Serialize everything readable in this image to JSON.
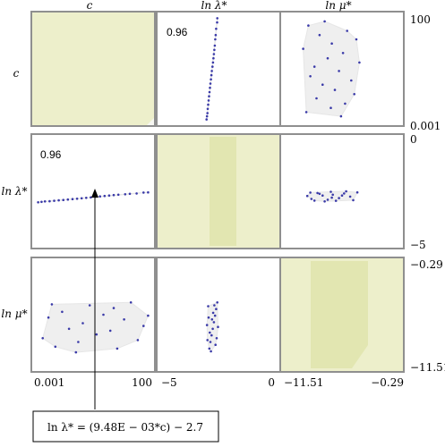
{
  "figure": {
    "column_headers": [
      "c",
      "ln λ*",
      "ln μ*"
    ],
    "row_headers": [
      "c",
      "ln λ*",
      "ln μ*"
    ],
    "correlation_labels": {
      "r0c1": "0.96",
      "r1c0": "0.96"
    },
    "annotation": "ln λ* = (9.48E − 03*c) − 2.7",
    "colors": {
      "diagonal_fill": "#edefcb",
      "diagonal_band": "#e2e6b1",
      "hull_fill": "#efefef",
      "point": "#3a3aa8",
      "frame": "#8f8f8f"
    }
  },
  "chart_data": {
    "type": "scatter",
    "variables": [
      {
        "name": "c",
        "range": [
          0.001,
          100
        ],
        "tick_labels": [
          "0.001",
          "100"
        ]
      },
      {
        "name": "ln λ*",
        "range": [
          -5,
          0
        ],
        "tick_labels": [
          "-5",
          "0"
        ]
      },
      {
        "name": "ln μ*",
        "range": [
          -11.51,
          -0.29
        ],
        "tick_labels": [
          "-11.51",
          "-0.29"
        ]
      }
    ],
    "right_axis_labels": [
      {
        "top": "100",
        "bottom": "0.001"
      },
      {
        "top": "0",
        "bottom": "−5"
      },
      {
        "top": "−0.29",
        "bottom": "−11.51"
      }
    ],
    "bottom_axis_labels": [
      {
        "left": "0.001",
        "right": "100"
      },
      {
        "left": "−5",
        "right": "0"
      },
      {
        "left": "−11.51",
        "right": "−0.29"
      }
    ],
    "panels": [
      {
        "row": 0,
        "col": 0,
        "kind": "diagonal"
      },
      {
        "row": 0,
        "col": 1,
        "kind": "scatter",
        "x": "ln λ*",
        "y": "c",
        "label": "0.96",
        "points": [
          [
            -2.55,
            98
          ],
          [
            -2.56,
            94
          ],
          [
            -2.6,
            88
          ],
          [
            -2.62,
            82
          ],
          [
            -2.64,
            78
          ],
          [
            -2.66,
            72
          ],
          [
            -2.68,
            68
          ],
          [
            -2.7,
            64
          ],
          [
            -2.72,
            60
          ],
          [
            -2.74,
            56
          ],
          [
            -2.76,
            52
          ],
          [
            -2.79,
            48
          ],
          [
            -2.81,
            44
          ],
          [
            -2.83,
            40
          ],
          [
            -2.85,
            36
          ],
          [
            -2.87,
            32
          ],
          [
            -2.89,
            28
          ],
          [
            -2.91,
            24
          ],
          [
            -2.93,
            20
          ],
          [
            -2.95,
            16
          ],
          [
            -2.97,
            12
          ],
          [
            -2.98,
            8
          ],
          [
            -3.0,
            5
          ],
          [
            -3.02,
            2
          ]
        ]
      },
      {
        "row": 0,
        "col": 2,
        "kind": "scatter",
        "x": "ln μ*",
        "y": "c",
        "points": [
          [
            -7.6,
            95
          ],
          [
            -9.2,
            91
          ],
          [
            -5.4,
            86
          ],
          [
            -8.1,
            82
          ],
          [
            -4.5,
            78
          ],
          [
            -6.9,
            74
          ],
          [
            -9.7,
            69
          ],
          [
            -5.8,
            65
          ],
          [
            -7.3,
            60
          ],
          [
            -4.2,
            56
          ],
          [
            -8.6,
            52
          ],
          [
            -6.2,
            48
          ],
          [
            -9.0,
            43
          ],
          [
            -5.0,
            39
          ],
          [
            -7.8,
            35
          ],
          [
            -6.6,
            30
          ],
          [
            -4.7,
            26
          ],
          [
            -8.4,
            22
          ],
          [
            -5.6,
            17
          ],
          [
            -7.0,
            13
          ],
          [
            -9.4,
            9
          ],
          [
            -6.0,
            5
          ]
        ]
      },
      {
        "row": 1,
        "col": 0,
        "kind": "scatter",
        "x": "c",
        "y": "ln λ*",
        "label": "0.96",
        "points": [
          [
            2,
            -3.02
          ],
          [
            5,
            -3.0
          ],
          [
            8,
            -2.98
          ],
          [
            12,
            -2.97
          ],
          [
            16,
            -2.95
          ],
          [
            20,
            -2.93
          ],
          [
            24,
            -2.91
          ],
          [
            28,
            -2.89
          ],
          [
            32,
            -2.87
          ],
          [
            36,
            -2.85
          ],
          [
            40,
            -2.83
          ],
          [
            44,
            -2.81
          ],
          [
            48,
            -2.79
          ],
          [
            52,
            -2.76
          ],
          [
            56,
            -2.74
          ],
          [
            60,
            -2.72
          ],
          [
            64,
            -2.7
          ],
          [
            68,
            -2.68
          ],
          [
            72,
            -2.66
          ],
          [
            78,
            -2.64
          ],
          [
            82,
            -2.62
          ],
          [
            88,
            -2.6
          ],
          [
            94,
            -2.56
          ],
          [
            98,
            -2.55
          ]
        ]
      },
      {
        "row": 1,
        "col": 1,
        "kind": "diagonal"
      },
      {
        "row": 1,
        "col": 2,
        "kind": "scatter",
        "x": "ln μ*",
        "y": "ln λ*",
        "points": [
          [
            -4.4,
            -2.55
          ],
          [
            -5.1,
            -2.75
          ],
          [
            -5.7,
            -2.6
          ],
          [
            -6.2,
            -2.82
          ],
          [
            -6.8,
            -2.66
          ],
          [
            -7.3,
            -2.9
          ],
          [
            -7.8,
            -2.7
          ],
          [
            -8.3,
            -2.58
          ],
          [
            -8.9,
            -2.86
          ],
          [
            -9.3,
            -2.72
          ],
          [
            -4.8,
            -2.92
          ],
          [
            -5.5,
            -2.5
          ],
          [
            -6.5,
            -2.95
          ],
          [
            -7.0,
            -2.52
          ],
          [
            -7.6,
            -2.98
          ],
          [
            -8.1,
            -2.62
          ],
          [
            -8.6,
            -2.94
          ],
          [
            -9.0,
            -2.56
          ],
          [
            -5.9,
            -2.7
          ],
          [
            -6.9,
            -2.8
          ]
        ]
      },
      {
        "row": 2,
        "col": 0,
        "kind": "scatter",
        "x": "c",
        "y": "ln μ*",
        "points": [
          [
            6,
            -8.4
          ],
          [
            11,
            -6.2
          ],
          [
            17,
            -9.3
          ],
          [
            23,
            -5.6
          ],
          [
            29,
            -7.4
          ],
          [
            35,
            -9.9
          ],
          [
            41,
            -6.8
          ],
          [
            47,
            -4.9
          ],
          [
            53,
            -8.0
          ],
          [
            59,
            -5.9
          ],
          [
            65,
            -7.6
          ],
          [
            71,
            -9.5
          ],
          [
            77,
            -6.4
          ],
          [
            83,
            -4.6
          ],
          [
            89,
            -8.6
          ],
          [
            94,
            -7.1
          ],
          [
            14,
            -4.8
          ],
          [
            37,
            -8.8
          ],
          [
            68,
            -5.2
          ],
          [
            98,
            -6.0
          ]
        ]
      },
      {
        "row": 2,
        "col": 1,
        "kind": "scatter",
        "x": "ln λ*",
        "y": "ln μ*",
        "points": [
          [
            -2.55,
            -4.6
          ],
          [
            -2.6,
            -5.3
          ],
          [
            -2.65,
            -6.0
          ],
          [
            -2.7,
            -6.7
          ],
          [
            -2.75,
            -7.4
          ],
          [
            -2.8,
            -8.1
          ],
          [
            -2.85,
            -8.8
          ],
          [
            -2.9,
            -9.5
          ],
          [
            -2.95,
            -5.0
          ],
          [
            -3.0,
            -7.0
          ],
          [
            -2.58,
            -8.4
          ],
          [
            -2.63,
            -9.1
          ],
          [
            -2.68,
            -4.9
          ],
          [
            -2.73,
            -5.7
          ],
          [
            -2.78,
            -6.4
          ],
          [
            -2.83,
            -9.8
          ],
          [
            -2.88,
            -7.8
          ],
          [
            -2.93,
            -6.2
          ],
          [
            -2.98,
            -8.6
          ],
          [
            -2.52,
            -7.2
          ]
        ]
      },
      {
        "row": 2,
        "col": 2,
        "kind": "diagonal"
      }
    ]
  }
}
